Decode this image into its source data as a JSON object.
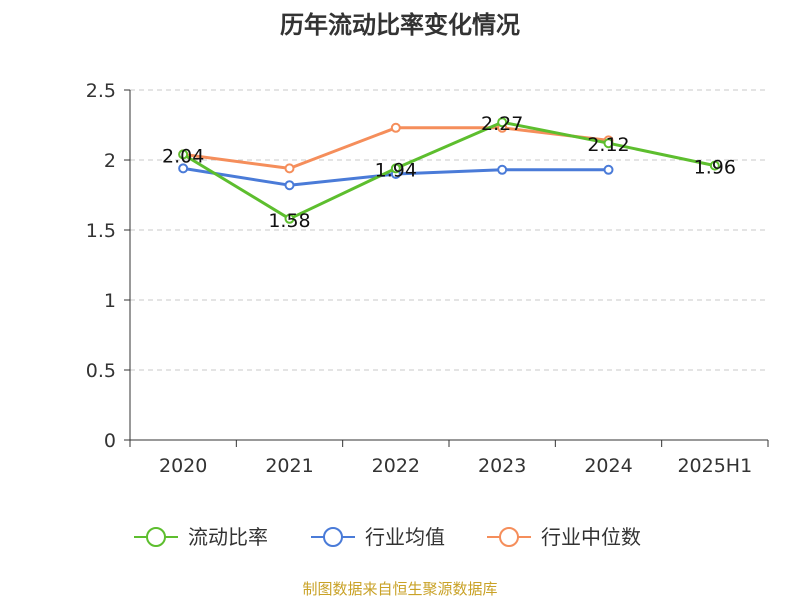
{
  "chart_data": {
    "type": "line",
    "title": "历年流动比率变化情况",
    "categories": [
      "2020",
      "2021",
      "2022",
      "2023",
      "2024",
      "2025H1"
    ],
    "ylim": [
      0,
      2.5
    ],
    "yticks": [
      "0",
      "0.5",
      "1",
      "1.5",
      "2",
      "2.5"
    ],
    "grid": true,
    "legend_position": "bottom",
    "series": [
      {
        "name": "流动比率",
        "color": "#5dbe2e",
        "values": [
          2.04,
          1.58,
          1.94,
          2.27,
          2.12,
          1.96
        ],
        "labels": [
          "2.04",
          "1.58",
          "1.94",
          "2.27",
          "2.12",
          "1.96"
        ]
      },
      {
        "name": "行业均值",
        "color": "#4a7bd8",
        "values": [
          1.94,
          1.82,
          1.9,
          1.93,
          1.93,
          null
        ]
      },
      {
        "name": "行业中位数",
        "color": "#f58e5b",
        "values": [
          2.04,
          1.94,
          2.23,
          2.23,
          2.14,
          null
        ]
      }
    ],
    "source": "制图数据来自恒生聚源数据库"
  }
}
